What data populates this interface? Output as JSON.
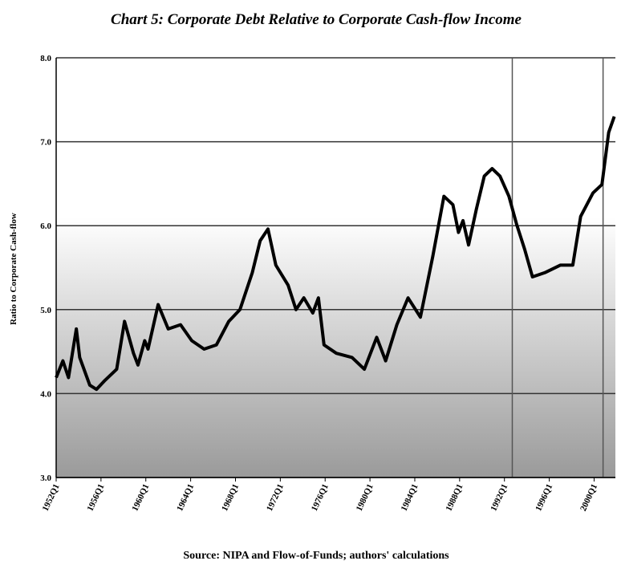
{
  "chart_data": {
    "type": "line",
    "title": "Chart 5:   Corporate Debt Relative to Corporate Cash-flow Income",
    "y_label": "Ratio to Corporate Cash-flow",
    "source": "Source: NIPA and Flow-of-Funds; authors' calculations",
    "x": [
      1952,
      1952.6,
      1953.1,
      1953.8,
      1954.1,
      1955,
      1955.6,
      1956.3,
      1957.4,
      1958.1,
      1958.9,
      1959.3,
      1959.9,
      1960.2,
      1961.1,
      1962,
      1963.1,
      1964.1,
      1965.2,
      1966.3,
      1967.4,
      1968.4,
      1969.5,
      1970.2,
      1970.9,
      1971.6,
      1972.7,
      1973.4,
      1974.1,
      1974.9,
      1975.4,
      1975.9,
      1977,
      1978.4,
      1979.5,
      1980.6,
      1981.4,
      1982.4,
      1983.4,
      1984.5,
      1985.6,
      1986.6,
      1987.4,
      1987.9,
      1988.3,
      1988.8,
      1989.5,
      1990.2,
      1990.9,
      1991.6,
      1992.4,
      1993.1,
      1993.8,
      1994.5,
      1995.6,
      1997,
      1998.1,
      1998.8,
      1999.9,
      2000.7,
      2001.3,
      2001.8
    ],
    "series": [
      {
        "name": "Ratio to Corporate Cash-flow",
        "color": "#000000",
        "values": [
          4.19,
          4.39,
          4.19,
          4.77,
          4.43,
          4.1,
          4.05,
          4.15,
          4.29,
          4.86,
          4.48,
          4.34,
          4.63,
          4.53,
          5.06,
          4.77,
          4.82,
          4.63,
          4.53,
          4.58,
          4.86,
          5.0,
          5.44,
          5.82,
          5.96,
          5.53,
          5.29,
          5.0,
          5.14,
          4.96,
          5.14,
          4.58,
          4.48,
          4.43,
          4.29,
          4.67,
          4.39,
          4.82,
          5.14,
          4.91,
          5.63,
          6.35,
          6.25,
          5.92,
          6.06,
          5.77,
          6.2,
          6.59,
          6.68,
          6.59,
          6.35,
          6.01,
          5.72,
          5.39,
          5.44,
          5.53,
          5.53,
          6.11,
          6.39,
          6.49,
          7.11,
          7.3
        ]
      }
    ],
    "xlim": [
      1952,
      2001.9
    ],
    "xticks": [
      {
        "value": 1952,
        "label": "1952Q1"
      },
      {
        "value": 1956,
        "label": "1956Q1"
      },
      {
        "value": 1960,
        "label": "1960Q1"
      },
      {
        "value": 1964,
        "label": "1964Q1"
      },
      {
        "value": 1968,
        "label": "1968Q1"
      },
      {
        "value": 1972,
        "label": "1972Q1"
      },
      {
        "value": 1976,
        "label": "1976Q1"
      },
      {
        "value": 1980,
        "label": "1980Q1"
      },
      {
        "value": 1984,
        "label": "1984Q1"
      },
      {
        "value": 1988,
        "label": "1988Q1"
      },
      {
        "value": 1992,
        "label": "1992Q1"
      },
      {
        "value": 1996,
        "label": "1996Q1"
      },
      {
        "value": 2000,
        "label": "2000Q1"
      }
    ],
    "ylim": [
      3,
      8
    ],
    "yticks": [
      {
        "value": 3,
        "label": "3.0"
      },
      {
        "value": 4,
        "label": "4.0"
      },
      {
        "value": 5,
        "label": "5.0"
      },
      {
        "value": 6,
        "label": "6.0"
      },
      {
        "value": 7,
        "label": "7.0"
      },
      {
        "value": 8,
        "label": "8.0"
      }
    ],
    "reference_lines": [
      1992.7,
      2000.8
    ],
    "grid": true
  }
}
